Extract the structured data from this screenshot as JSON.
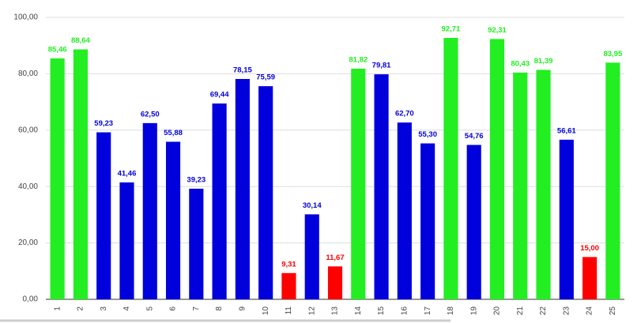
{
  "chart_data": {
    "type": "bar",
    "categories": [
      "1",
      "2",
      "3",
      "4",
      "5",
      "6",
      "7",
      "8",
      "9",
      "10",
      "11",
      "12",
      "13",
      "14",
      "15",
      "16",
      "17",
      "18",
      "19",
      "20",
      "21",
      "22",
      "23",
      "24",
      "25"
    ],
    "values": [
      85.46,
      88.64,
      59.23,
      41.46,
      62.5,
      55.88,
      39.23,
      69.44,
      78.15,
      75.59,
      9.31,
      30.14,
      11.67,
      81.82,
      79.81,
      62.7,
      55.3,
      92.71,
      54.76,
      92.31,
      80.43,
      81.39,
      56.61,
      15,
      83.95
    ],
    "value_labels": [
      "85,46",
      "88,64",
      "59,23",
      "41,46",
      "62,50",
      "55,88",
      "39,23",
      "69,44",
      "78,15",
      "75,59",
      "9,31",
      "30,14",
      "11,67",
      "81,82",
      "79,81",
      "62,70",
      "55,30",
      "92,71",
      "54,76",
      "92,31",
      "80,43",
      "81,39",
      "56,61",
      "15,00",
      "83,95"
    ],
    "colors": [
      "#22ee22",
      "#22ee22",
      "#0000dd",
      "#0000dd",
      "#0000dd",
      "#0000dd",
      "#0000dd",
      "#0000dd",
      "#0000dd",
      "#0000dd",
      "#ff0000",
      "#0000dd",
      "#ff0000",
      "#22ee22",
      "#0000dd",
      "#0000dd",
      "#0000dd",
      "#22ee22",
      "#0000dd",
      "#22ee22",
      "#22ee22",
      "#22ee22",
      "#0000dd",
      "#ff0000",
      "#22ee22"
    ],
    "ylim": [
      0,
      100
    ],
    "yticks": [
      {
        "value": 0,
        "label": "0,00"
      },
      {
        "value": 20,
        "label": "20,00"
      },
      {
        "value": 40,
        "label": "40,00"
      },
      {
        "value": 60,
        "label": "60,00"
      },
      {
        "value": 80,
        "label": "80,00"
      },
      {
        "value": 100,
        "label": "100,00"
      }
    ],
    "grid": true
  }
}
